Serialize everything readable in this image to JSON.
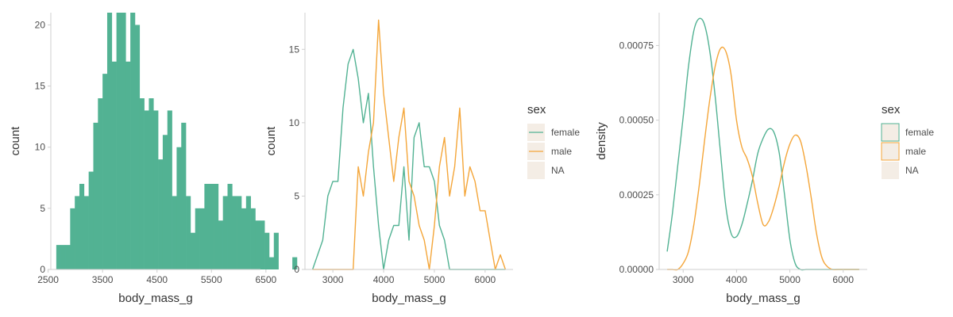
{
  "colors": {
    "female": "#52b293",
    "male": "#f4a63a",
    "na_key": "#f4ede5",
    "axis": "#cfcfcf",
    "text": "#4d4d4d"
  },
  "chart_data": [
    {
      "type": "bar",
      "title": "",
      "xlabel": "body_mass_g",
      "ylabel": "count",
      "xlim": [
        2550,
        6400
      ],
      "ylim": [
        0,
        21
      ],
      "x_ticks": [
        2500,
        3500,
        4500,
        5500,
        6500
      ],
      "x_tick_labels": [
        "2500",
        "3500",
        "4500",
        "5500",
        "6500"
      ],
      "y_ticks": [
        0,
        5,
        10,
        15,
        20
      ],
      "y_tick_labels": [
        "0",
        "5",
        "10",
        "15",
        "20"
      ],
      "bin_width": 85,
      "bin_start": 2650,
      "color": "#52b293",
      "values": [
        2,
        2,
        2,
        5,
        6,
        7,
        6,
        8,
        12,
        14,
        16,
        21,
        17,
        21,
        21,
        17,
        21,
        20,
        14,
        13,
        14,
        13,
        9,
        11,
        13,
        6,
        10,
        12,
        6,
        3,
        5,
        5,
        7,
        7,
        7,
        4,
        6,
        7,
        6,
        6,
        5,
        6,
        5,
        4,
        4,
        3,
        1,
        3,
        0,
        0,
        0,
        1
      ]
    },
    {
      "type": "line",
      "title": "",
      "xlabel": "body_mass_g",
      "ylabel": "count",
      "xlim": [
        2450,
        6550
      ],
      "ylim": [
        0,
        17.5
      ],
      "x_ticks": [
        3000,
        4000,
        5000,
        6000
      ],
      "x_tick_labels": [
        "3000",
        "4000",
        "5000",
        "6000"
      ],
      "y_ticks": [
        0,
        5,
        10,
        15
      ],
      "y_tick_labels": [
        "0",
        "5",
        "10",
        "15"
      ],
      "x": [
        2600,
        2700,
        2800,
        2900,
        3000,
        3100,
        3200,
        3300,
        3400,
        3500,
        3600,
        3700,
        3800,
        3900,
        4000,
        4100,
        4200,
        4300,
        4400,
        4500,
        4600,
        4700,
        4800,
        4900,
        5000,
        5100,
        5200,
        5300,
        5400,
        5500,
        5600,
        5700,
        5800,
        5900,
        6000,
        6100,
        6200,
        6300,
        6400
      ],
      "series": [
        {
          "name": "female",
          "color": "#52b293",
          "values": [
            0,
            1,
            2,
            5,
            6,
            6,
            11,
            14,
            15,
            13,
            10,
            12,
            7,
            3,
            0,
            2,
            3,
            3,
            7,
            2,
            9,
            10,
            7,
            7,
            6,
            3,
            2,
            0,
            0,
            0,
            0,
            0,
            0,
            0,
            0,
            0,
            0,
            0,
            0
          ]
        },
        {
          "name": "male",
          "color": "#f4a63a",
          "values": [
            0,
            0,
            0,
            0,
            0,
            0,
            0,
            0,
            0,
            7,
            5,
            8,
            10,
            17,
            12,
            9,
            6,
            9,
            11,
            6,
            5,
            3,
            2,
            0,
            3,
            7,
            9,
            5,
            7,
            11,
            5,
            7,
            6,
            4,
            4,
            2,
            0,
            1,
            0
          ]
        }
      ],
      "legend": {
        "title": "sex",
        "entries": [
          "female",
          "male",
          "NA"
        ],
        "position": "right"
      }
    },
    {
      "type": "area",
      "title": "",
      "xlabel": "body_mass_g",
      "ylabel": "density",
      "xlim": [
        2550,
        6450
      ],
      "ylim": [
        0,
        0.00086
      ],
      "x_ticks": [
        3000,
        4000,
        5000,
        6000
      ],
      "x_tick_labels": [
        "3000",
        "4000",
        "5000",
        "6000"
      ],
      "y_ticks": [
        0,
        0.00025,
        0.0005,
        0.00075
      ],
      "y_tick_labels": [
        "0.00000",
        "0.00025",
        "0.00050",
        "0.00075"
      ],
      "x": [
        2700,
        2800,
        2900,
        3000,
        3100,
        3200,
        3300,
        3400,
        3500,
        3600,
        3700,
        3800,
        3900,
        4000,
        4100,
        4200,
        4300,
        4400,
        4500,
        4600,
        4700,
        4800,
        4900,
        5000,
        5100,
        5200,
        5300,
        5400,
        5500,
        5600,
        5700,
        5800,
        5900,
        6000,
        6100,
        6200,
        6300
      ],
      "series": [
        {
          "name": "female",
          "color": "#52b293",
          "values": [
            6e-05,
            0.00019,
            0.00035,
            0.00051,
            0.00068,
            0.0008,
            0.00084,
            0.00082,
            0.00073,
            0.00058,
            0.00039,
            0.00021,
            0.00012,
            0.00011,
            0.00015,
            0.00022,
            0.0003,
            0.00039,
            0.00044,
            0.00047,
            0.00046,
            0.00039,
            0.00025,
            0.0001,
            2e-05,
            0.0,
            0.0,
            0.0,
            0.0,
            0.0,
            0.0,
            0.0,
            0.0,
            0.0,
            0.0,
            0.0,
            0.0
          ]
        },
        {
          "name": "male",
          "color": "#f4a63a",
          "values": [
            0.0,
            0.0,
            0.0,
            2e-05,
            6e-05,
            0.00015,
            0.00028,
            0.00043,
            0.00057,
            0.00068,
            0.00074,
            0.00073,
            0.00065,
            0.0005,
            0.00041,
            0.00037,
            0.00031,
            0.00022,
            0.00015,
            0.00016,
            0.00021,
            0.00028,
            0.00036,
            0.00042,
            0.00045,
            0.00043,
            0.00035,
            0.00024,
            0.00012,
            4e-05,
            1e-05,
            0.0,
            0.0,
            0.0,
            0.0,
            0.0,
            0.0
          ]
        }
      ],
      "legend": {
        "title": "sex",
        "entries": [
          "female",
          "male",
          "NA"
        ],
        "position": "right"
      }
    }
  ]
}
